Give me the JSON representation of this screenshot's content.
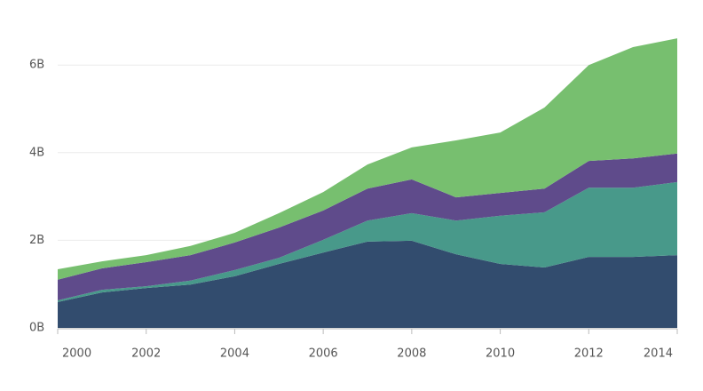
{
  "chart_data": {
    "type": "area",
    "stacked": true,
    "x": [
      2000,
      2001,
      2002,
      2003,
      2004,
      2005,
      2006,
      2007,
      2008,
      2009,
      2010,
      2011,
      2012,
      2013,
      2014
    ],
    "series": [
      {
        "color": "#324c6e",
        "values": [
          0.59,
          0.81,
          0.91,
          0.99,
          1.18,
          1.46,
          1.72,
          1.97,
          1.99,
          1.68,
          1.46,
          1.38,
          1.62,
          1.62,
          1.66
        ]
      },
      {
        "color": "#48998a",
        "values": [
          0.04,
          0.06,
          0.04,
          0.09,
          0.14,
          0.14,
          0.29,
          0.48,
          0.63,
          0.77,
          1.1,
          1.26,
          1.58,
          1.58,
          1.67
        ]
      },
      {
        "color": "#5f4b8b",
        "values": [
          0.47,
          0.49,
          0.55,
          0.58,
          0.63,
          0.69,
          0.67,
          0.73,
          0.77,
          0.53,
          0.52,
          0.54,
          0.61,
          0.67,
          0.65
        ]
      },
      {
        "color": "#77bf6f",
        "values": [
          0.24,
          0.16,
          0.16,
          0.21,
          0.22,
          0.33,
          0.42,
          0.55,
          0.73,
          1.3,
          1.38,
          1.85,
          2.19,
          2.54,
          2.63
        ]
      }
    ],
    "xlim": [
      2000,
      2014
    ],
    "xticks": [
      2000,
      2002,
      2004,
      2006,
      2008,
      2010,
      2012,
      2014
    ],
    "ylim": [
      0,
      7
    ],
    "yticks": [
      {
        "value": 0,
        "label": "0B"
      },
      {
        "value": 2,
        "label": "2B"
      },
      {
        "value": 4,
        "label": "4B"
      },
      {
        "value": 6,
        "label": "6B"
      }
    ],
    "grid": true
  }
}
